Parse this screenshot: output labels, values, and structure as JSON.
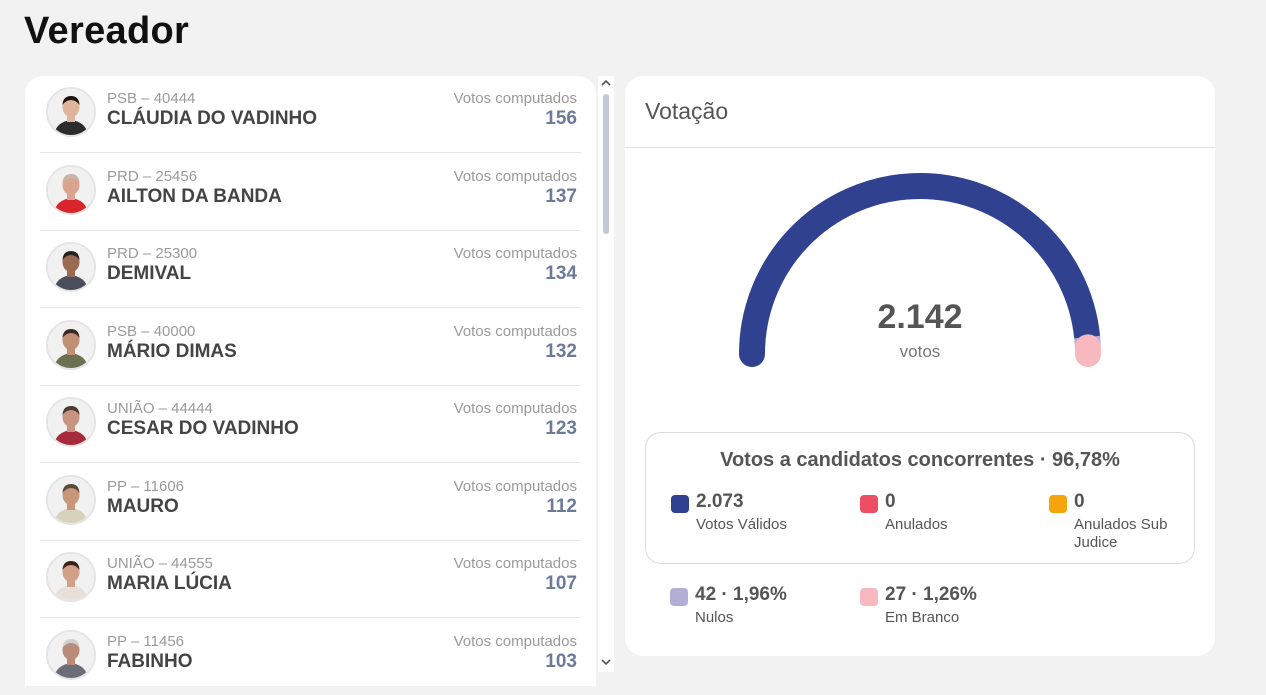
{
  "page_title": "Vereador",
  "candidates": [
    {
      "party": "PSB – 40444",
      "name": "CLÁUDIA DO VADINHO",
      "votes_label": "Votos computados",
      "votes": "156",
      "shirt": "#2b2b2b",
      "skin": "#e0b49a",
      "hair": "#1e1410"
    },
    {
      "party": "PRD – 25456",
      "name": "AILTON DA BANDA",
      "votes_label": "Votos computados",
      "votes": "137",
      "shirt": "#d8242b",
      "skin": "#d9a58e",
      "hair": "#c9b5aa"
    },
    {
      "party": "PRD – 25300",
      "name": "DEMIVAL",
      "votes_label": "Votos computados",
      "votes": "134",
      "shirt": "#4a4e5a",
      "skin": "#9a6a52",
      "hair": "#2a2220"
    },
    {
      "party": "PSB – 40000",
      "name": "MÁRIO DIMAS",
      "votes_label": "Votos computados",
      "votes": "132",
      "shirt": "#6b7050",
      "skin": "#c08f74",
      "hair": "#3a2a22"
    },
    {
      "party": "UNIÃO – 44444",
      "name": "CESAR DO VADINHO",
      "votes_label": "Votos computados",
      "votes": "123",
      "shirt": "#a52a3a",
      "skin": "#c89480",
      "hair": "#4a3a34"
    },
    {
      "party": "PP – 11606",
      "name": "MAURO",
      "votes_label": "Votos computados",
      "votes": "112",
      "shirt": "#d8d2bd",
      "skin": "#c8967a",
      "hair": "#5a4a3a"
    },
    {
      "party": "UNIÃO – 44555",
      "name": "MARIA LÚCIA",
      "votes_label": "Votos computados",
      "votes": "107",
      "shirt": "#e8e0d8",
      "skin": "#d0a088",
      "hair": "#3a2418"
    },
    {
      "party": "PP – 11456",
      "name": "FABINHO",
      "votes_label": "Votos computados",
      "votes": "103",
      "shirt": "#6a6e78",
      "skin": "#b88c78",
      "hair": "#cfcfcf"
    }
  ],
  "voting": {
    "title": "Votação",
    "total": "2.142",
    "unit": "votos",
    "gauge_segments": [
      {
        "name": "Votos Válidos",
        "fraction": 0.9678,
        "color": "#2f418f"
      },
      {
        "name": "Nulos",
        "fraction": 0.0196,
        "color": "#b3aed6"
      },
      {
        "name": "Em Branco",
        "fraction": 0.0126,
        "color": "#f8b8c0"
      }
    ],
    "concorrentes_title": "Votos a candidatos concorrentes · 96,78%",
    "concorrentes": [
      {
        "value": "2.073",
        "label": "Votos Válidos",
        "color": "#2f418f"
      },
      {
        "value": "0",
        "label": "Anulados",
        "color": "#ef4d64"
      },
      {
        "value": "0",
        "label": "Anulados Sub Judice",
        "color": "#f5a50b"
      }
    ],
    "others": [
      {
        "value": "42 · 1,96%",
        "label": "Nulos",
        "color": "#b3aed6"
      },
      {
        "value": "27 · 1,26%",
        "label": "Em Branco",
        "color": "#f8b8c0"
      }
    ]
  }
}
